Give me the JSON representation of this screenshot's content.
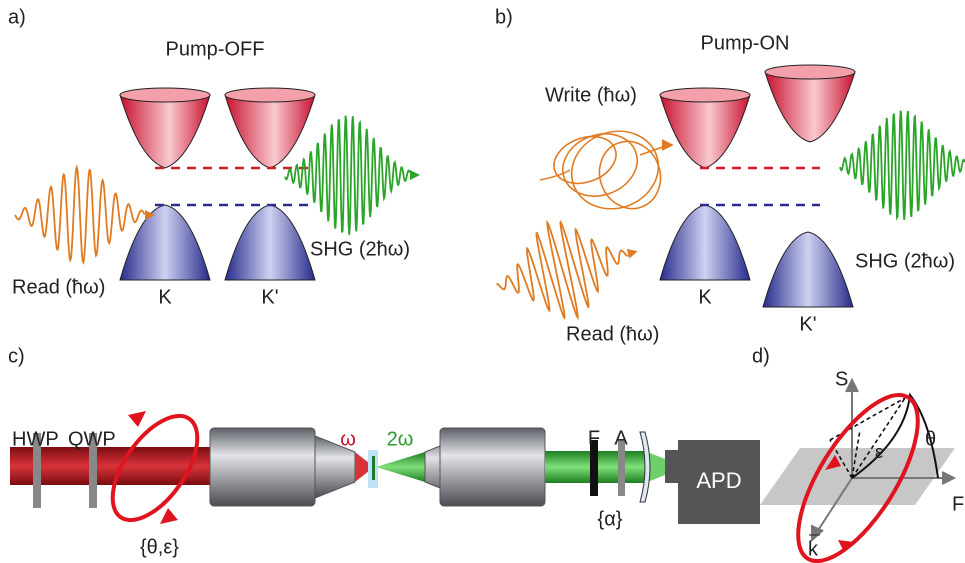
{
  "panels": [
    {
      "label": "a)",
      "title": "Pump-OFF",
      "read": "Read (ħω)",
      "valleys": [
        "K",
        "K'"
      ],
      "shg": "SHG (2ħω)"
    },
    {
      "label": "b)",
      "title": "Pump-ON",
      "write": "Write (ħω)",
      "read": "Read (ħω)",
      "valleys": [
        "K",
        "K'"
      ],
      "shg": "SHG (2ħω)"
    }
  ],
  "setup": {
    "label": "c)",
    "components": [
      "HWP",
      "QWP"
    ],
    "polarization": "{θ,ε}",
    "fundamental": "ω",
    "harmonic": "2ω",
    "filter": "F",
    "analyzer": "A",
    "analyzer_angle": "{α}",
    "detector": "APD"
  },
  "sphere": {
    "label": "d)",
    "axis_s": "S",
    "angle_theta": "θ",
    "angle_epsilon": "ε",
    "axis_f": "F",
    "wavevector": "k"
  }
}
